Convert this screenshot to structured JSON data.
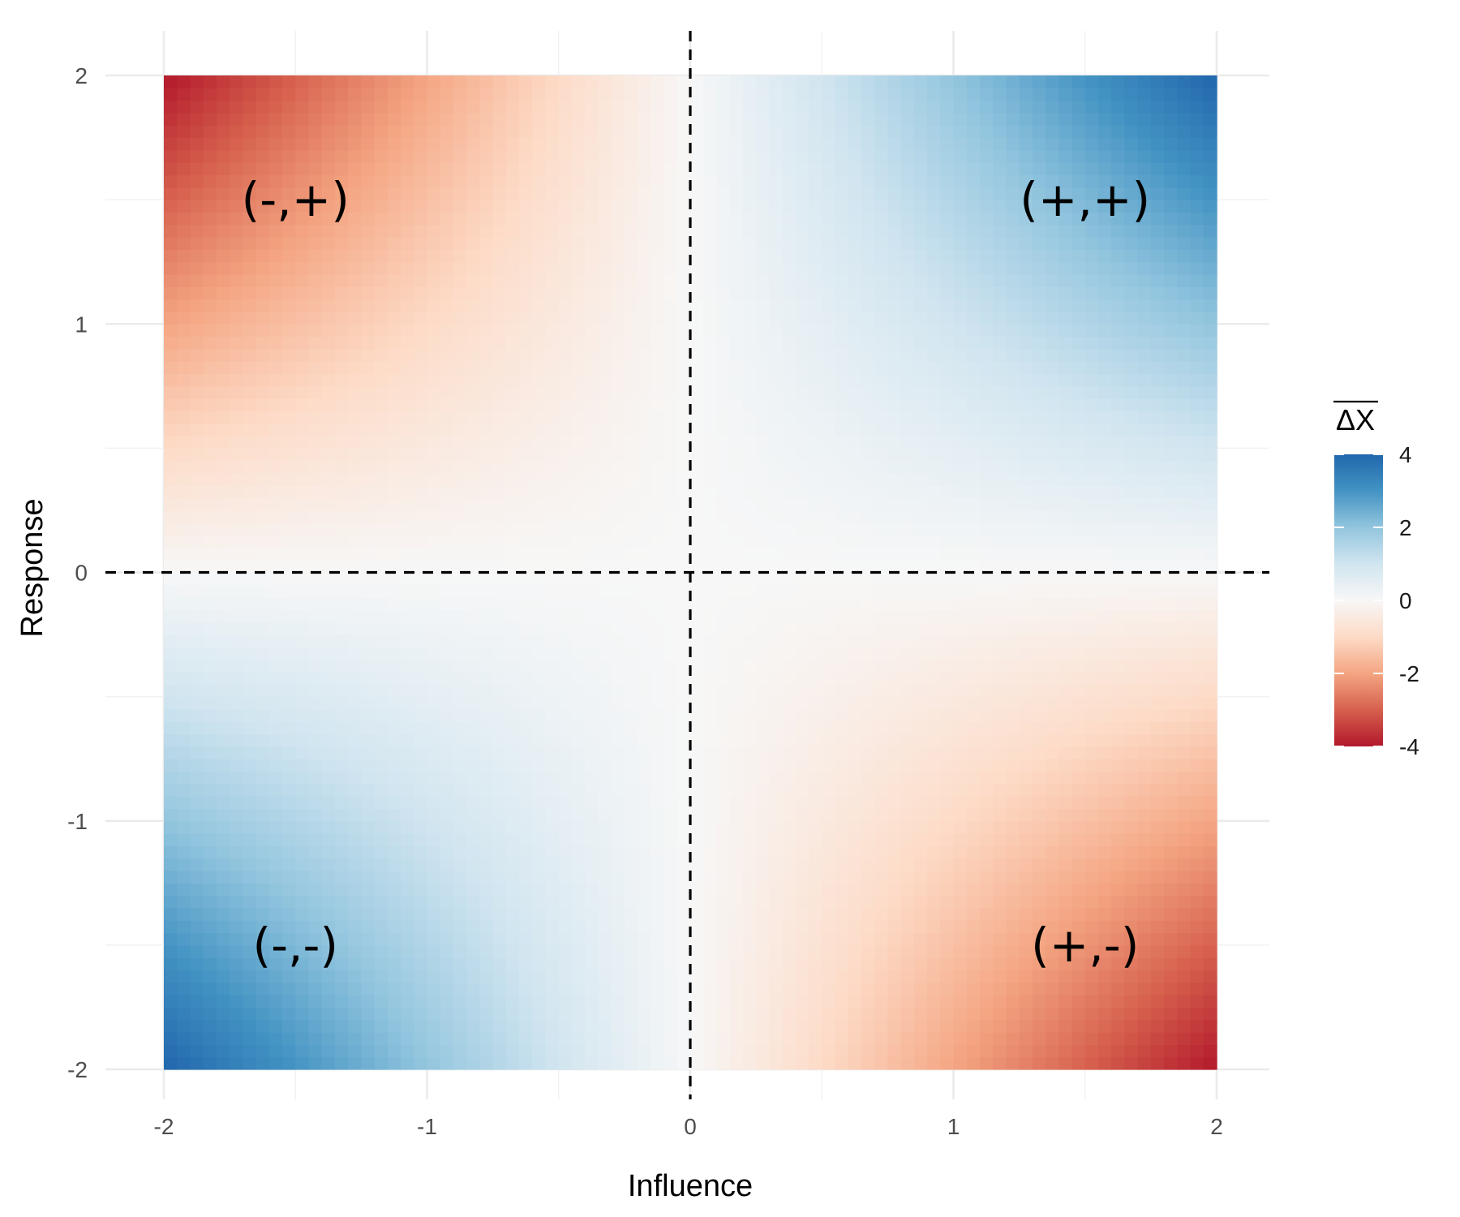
{
  "chart_data": {
    "type": "heatmap",
    "xlabel": "Influence",
    "ylabel": "Response",
    "xlim": [
      -2,
      2
    ],
    "ylim": [
      -2,
      2
    ],
    "x_ticks": [
      "-2",
      "-1",
      "0",
      "1",
      "2"
    ],
    "y_ticks": [
      "-2",
      "-1",
      "0",
      "1",
      "2"
    ],
    "grid": true,
    "reference_lines": [
      {
        "orientation": "vertical",
        "x": 0,
        "style": "dashed"
      },
      {
        "orientation": "horizontal",
        "y": 0,
        "style": "dashed"
      }
    ],
    "value_function": "approx. x*y (from -4 to 4)",
    "legend": {
      "title": "ΔX",
      "title_overline": true,
      "placement": "right",
      "ticks": [
        "4",
        "2",
        "0",
        "-2",
        "-4"
      ],
      "range": [
        -4,
        4
      ],
      "palette": [
        "#b2182b",
        "#d6604d",
        "#f4a582",
        "#fddbc7",
        "#f7f7f7",
        "#d1e5f0",
        "#92c5de",
        "#4393c3",
        "#2166ac"
      ]
    },
    "annotations": [
      {
        "text": "(-,+)",
        "x": -1.5,
        "y": 1.5
      },
      {
        "text": "(+,+)",
        "x": 1.5,
        "y": 1.5
      },
      {
        "text": "(-,-)",
        "x": -1.5,
        "y": -1.5
      },
      {
        "text": "(+,-)",
        "x": 1.5,
        "y": -1.5
      }
    ]
  }
}
